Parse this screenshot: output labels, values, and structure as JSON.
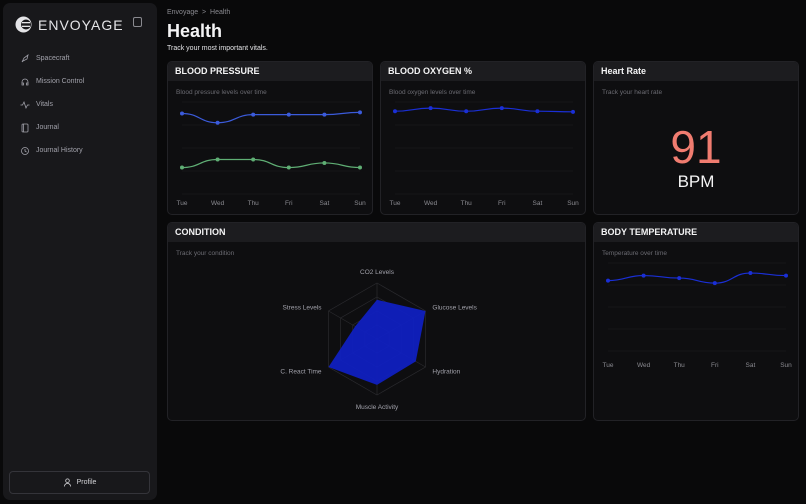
{
  "app": {
    "name": "ENVOYAGE"
  },
  "sidebar": {
    "items": [
      {
        "label": "Spacecraft",
        "icon": "rocket-icon"
      },
      {
        "label": "Mission Control",
        "icon": "headset-icon"
      },
      {
        "label": "Vitals",
        "icon": "activity-icon"
      },
      {
        "label": "Journal",
        "icon": "book-icon"
      },
      {
        "label": "Journal History",
        "icon": "history-icon"
      }
    ],
    "profile_label": "Profile"
  },
  "breadcrumb": {
    "root": "Envoyage",
    "sep": ">",
    "current": "Health"
  },
  "page": {
    "title": "Health",
    "subtitle": "Track your most important vitals."
  },
  "cards": {
    "bp": {
      "title": "BLOOD PRESSURE",
      "desc": "Blood pressure levels over time"
    },
    "ox": {
      "title": "BLOOD OXYGEN %",
      "desc": "Blood oxygen levels over time"
    },
    "hr": {
      "title": "Heart Rate",
      "desc": "Track your heart rate",
      "value": "91",
      "unit": "BPM"
    },
    "cond": {
      "title": "CONDITION",
      "desc": "Track your condition"
    },
    "temp": {
      "title": "BODY TEMPERATURE",
      "desc": "Temperature over time"
    }
  },
  "chart_data": [
    {
      "id": "bp",
      "type": "line",
      "categories": [
        "Tue",
        "Wed",
        "Thu",
        "Fri",
        "Sat",
        "Sun"
      ],
      "grid": true,
      "series": [
        {
          "values": [
            120,
            112,
            119,
            119,
            119,
            121
          ],
          "color": "#3b5bdb"
        },
        {
          "values": [
            73,
            80,
            80,
            73,
            77,
            73
          ],
          "color": "#5fae74"
        }
      ]
    },
    {
      "id": "ox",
      "type": "line",
      "categories": [
        "Tue",
        "Wed",
        "Thu",
        "Fri",
        "Sat",
        "Sun"
      ],
      "grid": true,
      "series": [
        {
          "values": [
            97,
            98,
            97,
            98,
            97,
            96.8
          ],
          "color": "#1a2fd6"
        }
      ]
    },
    {
      "id": "temp",
      "type": "line",
      "categories": [
        "Tue",
        "Wed",
        "Thu",
        "Fri",
        "Sat",
        "Sun"
      ],
      "grid": true,
      "series": [
        {
          "values": [
            36.8,
            37.0,
            36.9,
            36.7,
            37.1,
            37.0
          ],
          "color": "#1a2fd6"
        }
      ]
    },
    {
      "id": "cond",
      "type": "radar",
      "categories": [
        "CO2 Levels",
        "Glucose Levels",
        "Hydration",
        "Muscle Activity",
        "C. React Time",
        "Stress Levels"
      ],
      "values": [
        70,
        100,
        80,
        82,
        100,
        45
      ],
      "max": 100,
      "color": "#0f1fc4"
    }
  ]
}
